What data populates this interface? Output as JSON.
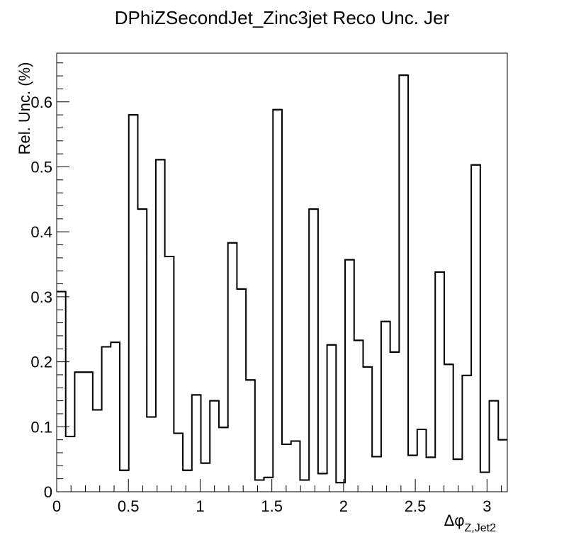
{
  "chart_data": {
    "type": "histogram",
    "title": "DPhiZSecondJet_Zinc3jet Reco Unc. Jer",
    "xlabel": {
      "main": "Δφ",
      "sub": "Z,Jet2"
    },
    "ylabel": "Rel. Unc. (%)",
    "xlim": [
      0,
      3.1416
    ],
    "ylim": [
      0,
      0.675
    ],
    "x_ticks": [
      0,
      0.5,
      1,
      1.5,
      2,
      2.5,
      3
    ],
    "x_tick_labels": [
      "0",
      "0.5",
      "1",
      "1.5",
      "2",
      "2.5",
      "3"
    ],
    "y_ticks": [
      0,
      0.1,
      0.2,
      0.3,
      0.4,
      0.5,
      0.6
    ],
    "y_tick_labels": [
      "0",
      "0.1",
      "0.2",
      "0.3",
      "0.4",
      "0.5",
      "0.6"
    ],
    "grid": false,
    "legend": "none",
    "line_color": "#000000",
    "bins": 50,
    "values": [
      0.308,
      0.085,
      0.184,
      0.184,
      0.126,
      0.223,
      0.23,
      0.033,
      0.58,
      0.435,
      0.115,
      0.511,
      0.362,
      0.09,
      0.033,
      0.149,
      0.044,
      0.14,
      0.099,
      0.383,
      0.312,
      0.172,
      0.018,
      0.022,
      0.588,
      0.073,
      0.078,
      0.018,
      0.435,
      0.028,
      0.226,
      0.014,
      0.357,
      0.233,
      0.192,
      0.054,
      0.262,
      0.215,
      0.641,
      0.056,
      0.096,
      0.053,
      0.338,
      0.196,
      0.05,
      0.179,
      0.503,
      0.03,
      0.14,
      0.08
    ]
  }
}
